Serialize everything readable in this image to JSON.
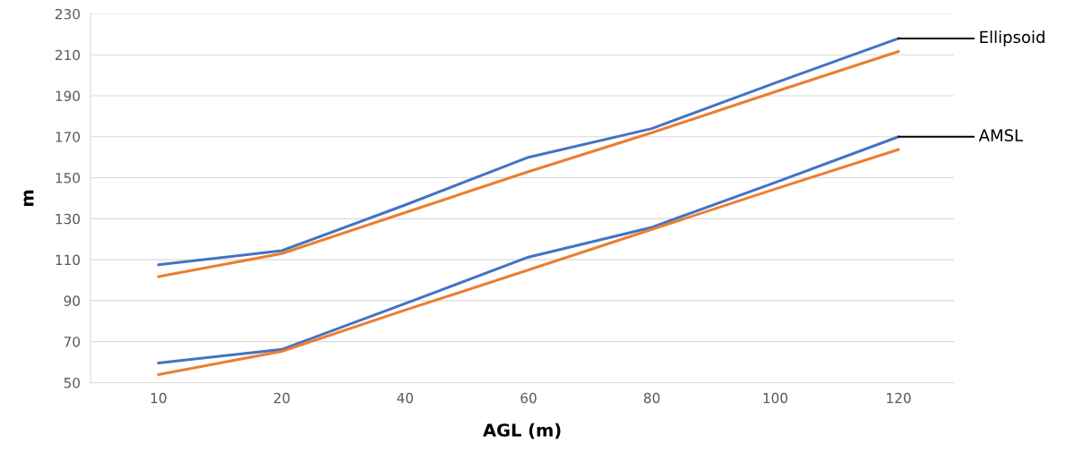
{
  "chart_data": {
    "type": "line",
    "xlabel": "AGL (m)",
    "ylabel": "m",
    "categories": [
      "10",
      "20",
      "40",
      "60",
      "80",
      "100",
      "120"
    ],
    "series": [
      {
        "color": "#4472c4",
        "values": [
          107.5,
          114.4,
          136.7,
          160,
          174,
          196.3,
          218
        ]
      },
      {
        "color": "#ed7d31",
        "values": [
          101.7,
          113,
          133,
          153,
          172,
          192,
          211.6
        ]
      },
      {
        "color": "#4472c4",
        "values": [
          59.6,
          66.2,
          88.6,
          111.3,
          125.8,
          147.7,
          170
        ]
      },
      {
        "color": "#ed7d31",
        "values": [
          53.9,
          65.3,
          85.4,
          105,
          124.8,
          144.5,
          163.8
        ]
      }
    ],
    "ylim": [
      50,
      230
    ],
    "yticks": [
      50,
      70,
      90,
      110,
      130,
      150,
      170,
      190,
      210,
      230
    ],
    "grid": "y",
    "legend": false,
    "marker": "none",
    "line_style": "solid",
    "annotations": [
      {
        "text": "Ellipsoid",
        "x": "120",
        "y": 218
      },
      {
        "text": "AMSL",
        "x": "120",
        "y": 170
      }
    ]
  }
}
